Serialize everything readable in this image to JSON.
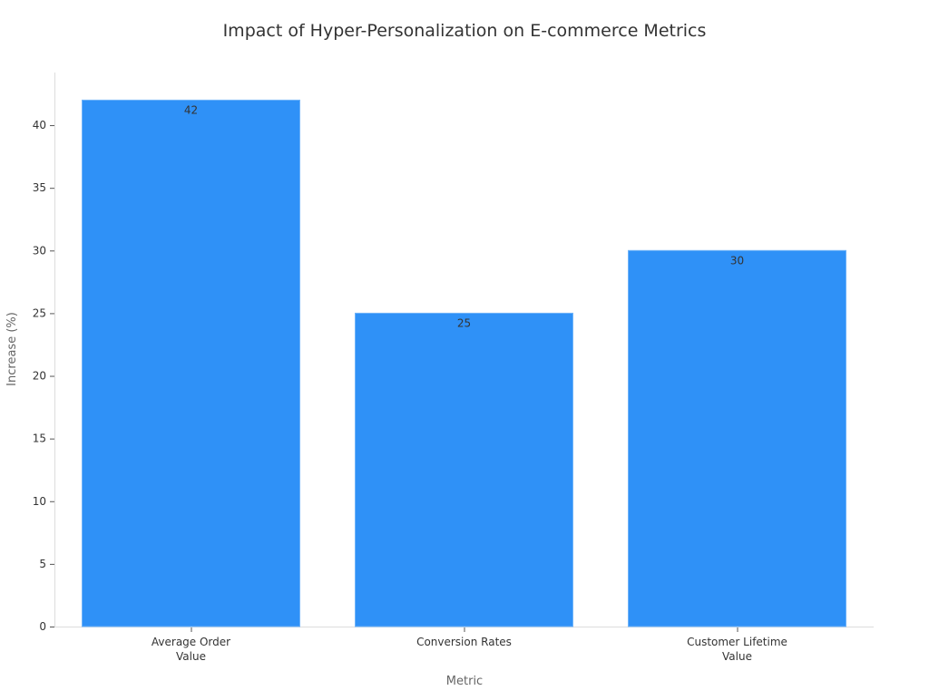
{
  "chart_data": {
    "type": "bar",
    "title": "Impact of Hyper-Personalization on E-commerce Metrics",
    "xlabel": "Metric",
    "ylabel": "Increase (%)",
    "categories": [
      [
        "Average Order",
        "Value"
      ],
      [
        "Conversion Rates"
      ],
      [
        "Customer Lifetime",
        "Value"
      ]
    ],
    "values": [
      42,
      25,
      30
    ],
    "data_labels": [
      "42",
      "25",
      "30"
    ],
    "ylim": [
      0,
      44.2
    ],
    "yticks": [
      0,
      5,
      10,
      15,
      20,
      25,
      30,
      35,
      40
    ],
    "grid": false,
    "bar_color": "#2f91f7"
  }
}
